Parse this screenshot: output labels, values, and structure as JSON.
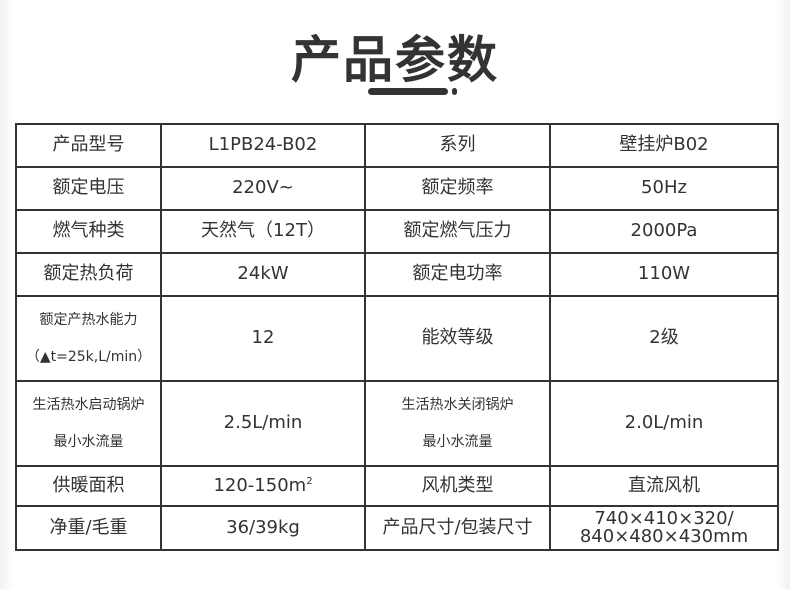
{
  "title": "产品参数",
  "rows": [
    [
      "产品型号",
      "L1PB24-B02",
      "系列",
      "壁挂炉B02"
    ],
    [
      "额定电压",
      "220V~",
      "额定频率",
      "50Hz"
    ],
    [
      "燃气种类",
      "天然气（12T）",
      "额定燃气压力",
      "2000Pa"
    ],
    [
      "额定热负荷",
      "24kW",
      "额定电功率",
      "110W"
    ],
    [
      [
        "额定产热水能力",
        "（▲t=25k,L/min）"
      ],
      "12",
      "能效等级",
      "2级"
    ],
    [
      [
        "生活热水启动锅炉",
        "最小水流量"
      ],
      "2.5L/min",
      [
        "生活热水关闭锅炉",
        "最小水流量"
      ],
      "2.0L/min"
    ],
    [
      "供暖面积",
      {
        "base": "120-150m",
        "sup": "2"
      },
      "风机类型",
      "直流风机"
    ],
    [
      "净重/毛重",
      "36/39kg",
      "产品尺寸/包装尺寸",
      [
        "740×410×320/",
        "840×480×430mm"
      ]
    ]
  ]
}
